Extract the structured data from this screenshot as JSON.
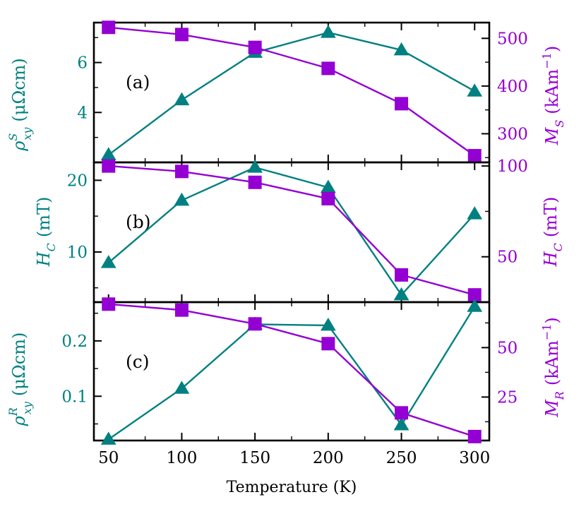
{
  "figure": {
    "xlabel": "Temperature (K)",
    "xticks": [
      50,
      100,
      150,
      200,
      250,
      300
    ]
  },
  "colors": {
    "teal": "#008080",
    "purple": "#9400D3",
    "axis": "#000000",
    "background": "#ffffff"
  },
  "chart_data": [
    {
      "type": "line",
      "panel_label": "(a)",
      "x": [
        50,
        100,
        150,
        200,
        250,
        300
      ],
      "xlim": [
        40,
        310
      ],
      "ylabel_left": {
        "symbol": "ρ",
        "sup": "S",
        "sub": "xy",
        "unit": "(μΩcm)"
      },
      "ylabel_right": {
        "symbol": "M",
        "sub": "S",
        "unit": "(kAm",
        "exp": "−1",
        "close": ")"
      },
      "ylim_left": [
        2.0,
        7.6
      ],
      "ylim_right": [
        240,
        533
      ],
      "yticks_left": [
        "4",
        "6"
      ],
      "yticks_right": [
        "300",
        "400",
        "500"
      ],
      "series": [
        {
          "name": "ρ_xy^S",
          "axis": "left",
          "marker": "triangle",
          "color": "teal",
          "values": [
            2.3,
            4.5,
            6.4,
            7.2,
            6.5,
            4.85
          ]
        },
        {
          "name": "M_S",
          "axis": "right",
          "marker": "square",
          "color": "purple",
          "values": [
            523,
            508,
            481,
            437,
            363,
            254
          ]
        }
      ]
    },
    {
      "type": "line",
      "panel_label": "(b)",
      "x": [
        50,
        100,
        150,
        200,
        250,
        300
      ],
      "xlim": [
        40,
        310
      ],
      "ylabel_left": {
        "symbol": "H",
        "sub": "C",
        "unit": "(mT)"
      },
      "ylabel_right": {
        "symbol": "H",
        "sub": "C",
        "unit": "(mT)"
      },
      "ylim_left": [
        3.0,
        22.5
      ],
      "ylim_right": [
        25,
        102
      ],
      "yticks_left": [
        "10",
        "20"
      ],
      "yticks_right": [
        "50",
        "100"
      ],
      "series": [
        {
          "name": "H_C (left)",
          "axis": "left",
          "marker": "triangle",
          "color": "teal",
          "values": [
            8.5,
            17.2,
            21.8,
            19.0,
            4.0,
            15.3
          ]
        },
        {
          "name": "H_C (right)",
          "axis": "right",
          "marker": "square",
          "color": "purple",
          "values": [
            100,
            97,
            91,
            82,
            40,
            29
          ]
        }
      ]
    },
    {
      "type": "line",
      "panel_label": "(c)",
      "x": [
        50,
        100,
        150,
        200,
        250,
        300
      ],
      "xlim": [
        40,
        310
      ],
      "ylabel_left": {
        "symbol": "ρ",
        "sup": "R",
        "sub": "xy",
        "unit": "(μΩcm)"
      },
      "ylabel_right": {
        "symbol": "M",
        "sub": "R",
        "unit": "(kAm",
        "exp": "−1",
        "close": ")"
      },
      "ylim_left": [
        0.02,
        0.27
      ],
      "ylim_right": [
        3,
        73
      ],
      "yticks_left": [
        "0.1",
        "0.2"
      ],
      "yticks_right": [
        "25",
        "50"
      ],
      "series": [
        {
          "name": "ρ_xy^R",
          "axis": "left",
          "marker": "triangle",
          "color": "teal",
          "values": [
            0.022,
            0.114,
            0.23,
            0.228,
            0.048,
            0.262
          ]
        },
        {
          "name": "M_R",
          "axis": "right",
          "marker": "square",
          "color": "purple",
          "values": [
            72,
            69,
            62,
            52,
            17,
            5
          ]
        }
      ]
    }
  ]
}
